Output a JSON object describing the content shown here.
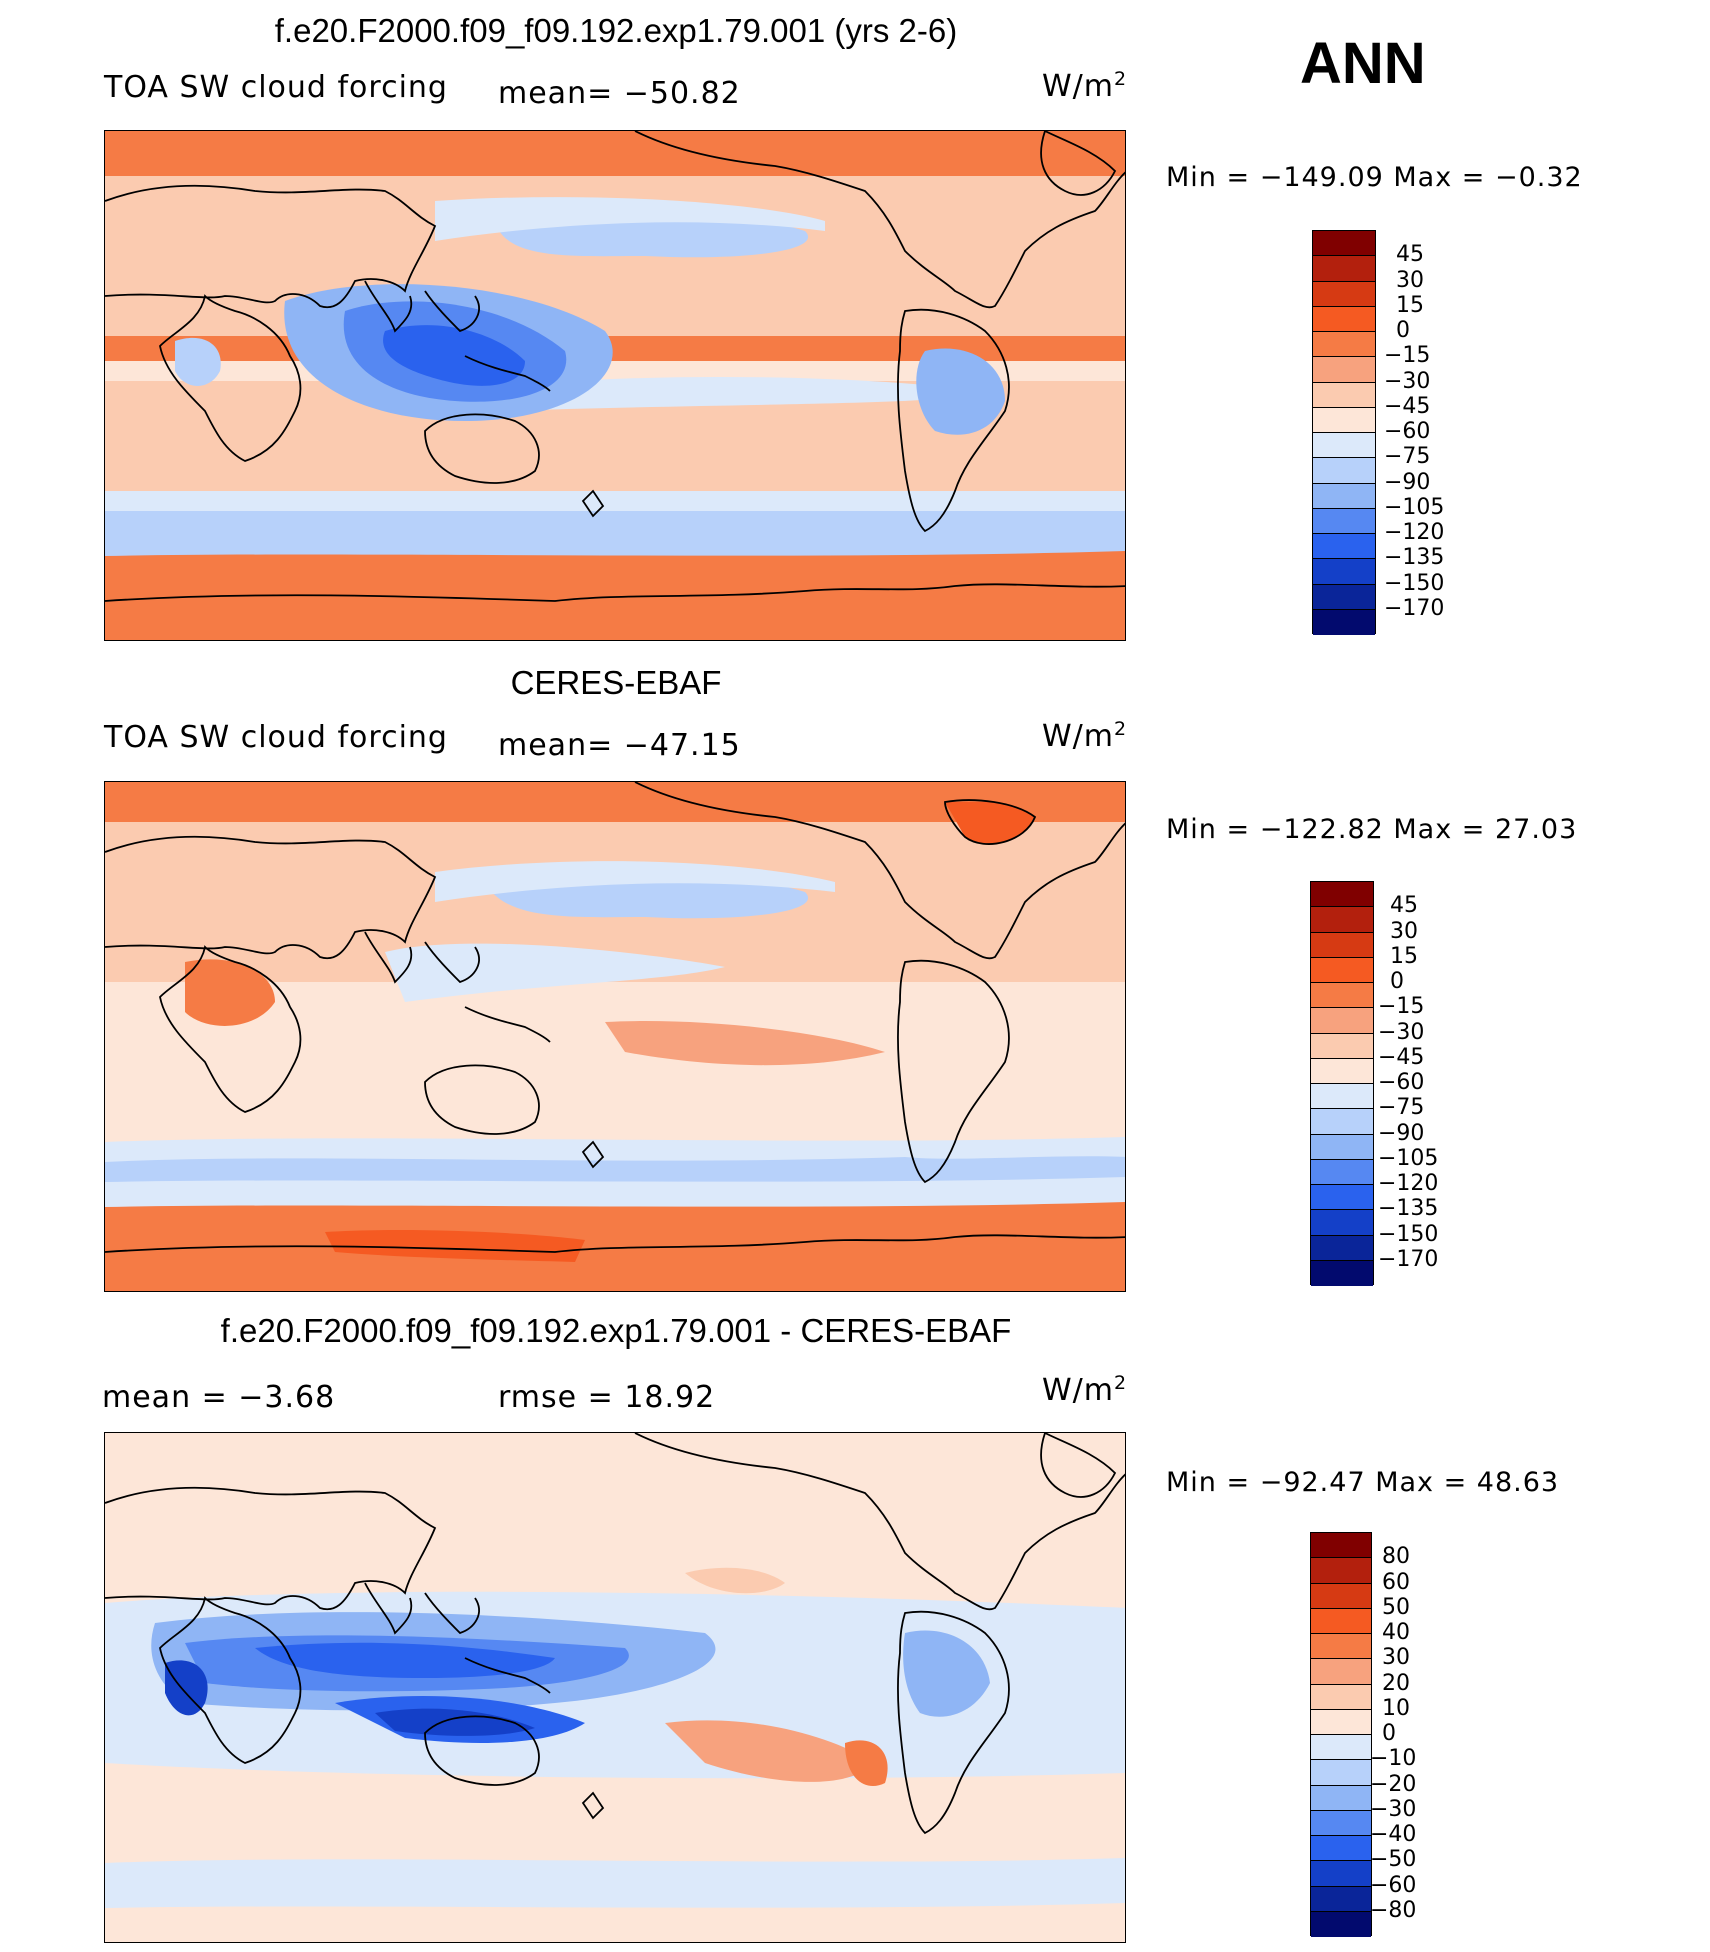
{
  "season": "ANN",
  "units": {
    "base": "W/m",
    "exp": "2"
  },
  "panels": [
    {
      "title": "f.e20.F2000.f09_f09.192.exp1.79.001 (yrs 2-6)",
      "variable": "TOA SW cloud forcing",
      "stat_left": "",
      "stat_mid": "mean=  −50.82",
      "min_label": "Min  =  −149.09  Max  =    −0.32",
      "levels": [
        "45",
        "30",
        "15",
        "0",
        "−15",
        "−30",
        "−45",
        "−60",
        "−75",
        "−90",
        "−105",
        "−120",
        "−135",
        "−150",
        "−170"
      ]
    },
    {
      "title": "CERES-EBAF",
      "variable": "TOA SW cloud forcing",
      "stat_left": "",
      "stat_mid": "mean=  −47.15",
      "min_label": "Min  =  −122.82  Max  =    27.03",
      "levels": [
        "45",
        "30",
        "15",
        "0",
        "−15",
        "−30",
        "−45",
        "−60",
        "−75",
        "−90",
        "−105",
        "−120",
        "−135",
        "−150",
        "−170"
      ]
    },
    {
      "title": "f.e20.F2000.f09_f09.192.exp1.79.001 - CERES-EBAF",
      "variable": "",
      "stat_left": "mean  =    −3.68",
      "stat_mid": "rmse  =    18.92",
      "min_label": "Min  =  −92.47  Max  =    48.63",
      "levels": [
        "80",
        "60",
        "50",
        "40",
        "30",
        "20",
        "10",
        "0",
        "−10",
        "−20",
        "−30",
        "−40",
        "−50",
        "−60",
        "−80"
      ]
    }
  ],
  "colors": {
    "scale": [
      "#800000",
      "#b3200d",
      "#d63a13",
      "#f55a22",
      "#f57b45",
      "#f7a27e",
      "#fbcbb0",
      "#fde6d8",
      "#dce9fa",
      "#b7d1fa",
      "#8fb5f5",
      "#5688f2",
      "#2a62ee",
      "#1440c8",
      "#0a2599",
      "#020a6e"
    ]
  }
}
